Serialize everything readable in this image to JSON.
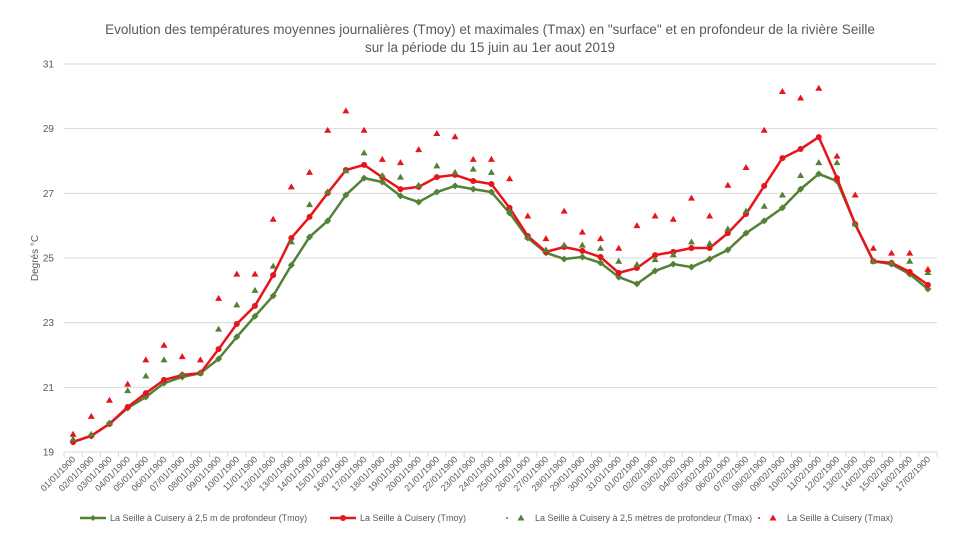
{
  "chart_data": {
    "type": "line",
    "title": [
      "Evolution des températures moyennes journalières (Tmoy) et maximales (Tmax) en \"surface\" et en profondeur de la rivière Seille",
      "sur la période du 15 juin au 1er aout 2019"
    ],
    "xlabel": "",
    "ylabel": "Degrés °C",
    "ylim": [
      19,
      31
    ],
    "yticks": [
      19,
      21,
      23,
      25,
      27,
      29,
      31
    ],
    "grid": true,
    "legend_position": "bottom",
    "categories": [
      "01/01/1900",
      "02/01/1900",
      "03/01/1900",
      "04/01/1900",
      "05/01/1900",
      "06/01/1900",
      "07/01/1900",
      "08/01/1900",
      "09/01/1900",
      "10/01/1900",
      "11/01/1900",
      "12/01/1900",
      "13/01/1900",
      "14/01/1900",
      "15/01/1900",
      "16/01/1900",
      "17/01/1900",
      "18/01/1900",
      "19/01/1900",
      "20/01/1900",
      "21/01/1900",
      "22/01/1900",
      "23/01/1900",
      "24/01/1900",
      "25/01/1900",
      "26/01/1900",
      "27/01/1900",
      "28/01/1900",
      "29/01/1900",
      "30/01/1900",
      "31/01/1900",
      "01/02/1900",
      "02/02/1900",
      "03/02/1900",
      "04/02/1900",
      "05/02/1900",
      "06/02/1900",
      "07/02/1900",
      "08/02/1900",
      "09/02/1900",
      "10/02/1900",
      "11/02/1900",
      "12/02/1900",
      "13/02/1900",
      "14/02/1900",
      "15/02/1900",
      "16/02/1900",
      "17/02/1900"
    ],
    "series": [
      {
        "name": "La Seille à Cuisery à 2,5 m de profondeur (Tmoy)",
        "style": "line-diamond",
        "color": "#538135",
        "values": [
          19.31,
          19.5,
          19.87,
          20.36,
          20.7,
          21.13,
          21.32,
          21.44,
          21.88,
          22.56,
          23.2,
          23.83,
          24.78,
          25.65,
          26.15,
          26.95,
          27.47,
          27.35,
          26.92,
          26.73,
          27.04,
          27.23,
          27.13,
          27.04,
          26.39,
          25.62,
          25.16,
          24.97,
          25.03,
          24.85,
          24.41,
          24.2,
          24.6,
          24.81,
          24.72,
          24.97,
          25.25,
          25.77,
          26.15,
          26.55,
          27.13,
          27.6,
          27.38,
          26.05,
          24.9,
          24.81,
          24.5,
          24.04
        ]
      },
      {
        "name": "La Seille à Cuisery (Tmoy)",
        "style": "line-circle",
        "color": "#e8141c",
        "values": [
          19.31,
          19.5,
          19.87,
          20.39,
          20.82,
          21.23,
          21.38,
          21.44,
          22.18,
          22.96,
          23.52,
          24.47,
          25.62,
          26.27,
          27.01,
          27.72,
          27.88,
          27.5,
          27.13,
          27.2,
          27.5,
          27.57,
          27.38,
          27.29,
          26.55,
          25.68,
          25.19,
          25.34,
          25.22,
          25.03,
          24.54,
          24.69,
          25.09,
          25.19,
          25.31,
          25.31,
          25.77,
          26.36,
          27.23,
          28.09,
          28.37,
          28.74,
          27.47,
          26.05,
          24.9,
          24.85,
          24.57,
          24.17
        ]
      },
      {
        "name": "La Seille à Cuisery à 2,5 mètres de profondeur (Tmax)",
        "style": "triangle",
        "color": "#538135",
        "values": [
          19.4,
          19.55,
          19.9,
          20.9,
          21.35,
          21.85,
          21.4,
          21.45,
          22.8,
          23.55,
          24.0,
          24.75,
          25.5,
          26.65,
          27.05,
          27.7,
          28.25,
          27.55,
          27.5,
          27.25,
          27.85,
          27.65,
          27.75,
          27.65,
          26.45,
          25.65,
          25.25,
          25.4,
          25.4,
          25.3,
          24.9,
          24.8,
          24.95,
          25.1,
          25.5,
          25.45,
          25.9,
          26.45,
          26.6,
          26.95,
          27.55,
          27.95,
          27.95,
          26.05,
          24.9,
          24.85,
          24.9,
          24.55
        ]
      },
      {
        "name": "La Seille à Cuisery (Tmax)",
        "style": "triangle",
        "color": "#e8141c",
        "values": [
          19.55,
          20.1,
          20.6,
          21.1,
          21.85,
          22.3,
          21.95,
          21.85,
          23.75,
          24.5,
          24.5,
          26.2,
          27.2,
          27.65,
          28.95,
          29.55,
          28.95,
          28.05,
          27.95,
          28.35,
          28.85,
          28.75,
          28.05,
          28.05,
          27.45,
          26.3,
          25.6,
          26.45,
          25.8,
          25.6,
          25.3,
          26.0,
          26.3,
          26.2,
          26.85,
          26.3,
          27.25,
          27.8,
          28.95,
          30.15,
          29.95,
          30.25,
          28.15,
          26.95,
          25.3,
          25.15,
          25.15,
          24.65
        ]
      }
    ]
  }
}
